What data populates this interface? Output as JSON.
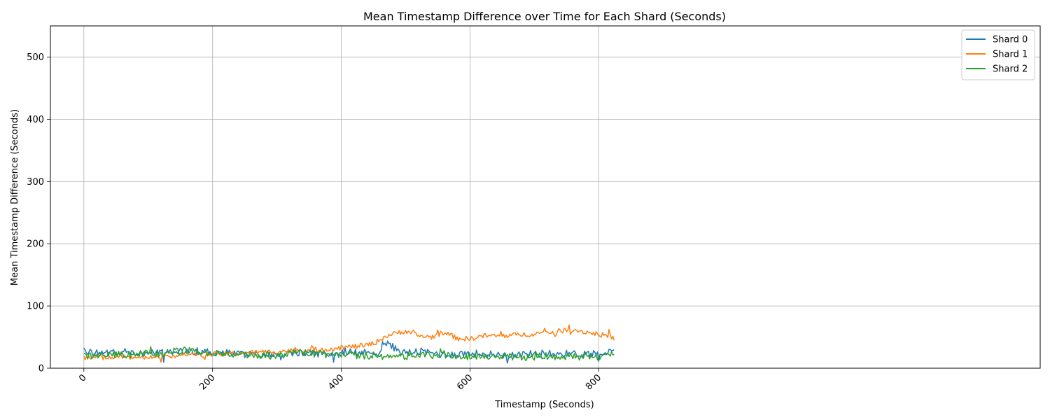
{
  "chart_data": {
    "type": "line",
    "title": "Mean Timestamp Difference over Time for Each Shard (Seconds)",
    "xlabel": "Timestamp (Seconds)",
    "ylabel": "Mean Timestamp Difference (Seconds)",
    "xlim": [
      -52,
      1486
    ],
    "ylim": [
      0,
      550
    ],
    "xticks": [
      0,
      200,
      400,
      600,
      800
    ],
    "yticks": [
      0,
      100,
      200,
      300,
      400,
      500
    ],
    "xtick_rotation": 45,
    "grid": true,
    "legend": {
      "position": "top-right"
    },
    "x_start": 0,
    "x_end": 825,
    "series": [
      {
        "name": "Shard 0",
        "color": "#1f77b4",
        "anchors": [
          [
            0,
            28
          ],
          [
            20,
            24
          ],
          [
            60,
            27
          ],
          [
            100,
            24
          ],
          [
            160,
            28
          ],
          [
            200,
            26
          ],
          [
            260,
            22
          ],
          [
            300,
            21
          ],
          [
            340,
            25
          ],
          [
            380,
            23
          ],
          [
            420,
            24
          ],
          [
            460,
            26
          ],
          [
            465,
            42
          ],
          [
            480,
            34
          ],
          [
            500,
            24
          ],
          [
            520,
            27
          ],
          [
            560,
            22
          ],
          [
            600,
            24
          ],
          [
            640,
            22
          ],
          [
            680,
            22
          ],
          [
            720,
            24
          ],
          [
            760,
            23
          ],
          [
            800,
            24
          ],
          [
            825,
            27
          ]
        ]
      },
      {
        "name": "Shard 1",
        "color": "#ff7f0e",
        "anchors": [
          [
            0,
            16
          ],
          [
            40,
            18
          ],
          [
            100,
            18
          ],
          [
            160,
            21
          ],
          [
            200,
            22
          ],
          [
            260,
            25
          ],
          [
            300,
            27
          ],
          [
            340,
            29
          ],
          [
            380,
            31
          ],
          [
            400,
            33
          ],
          [
            420,
            35
          ],
          [
            440,
            37
          ],
          [
            455,
            42
          ],
          [
            470,
            52
          ],
          [
            500,
            60
          ],
          [
            520,
            52
          ],
          [
            540,
            50
          ],
          [
            560,
            58
          ],
          [
            580,
            48
          ],
          [
            600,
            47
          ],
          [
            620,
            52
          ],
          [
            650,
            52
          ],
          [
            680,
            54
          ],
          [
            720,
            57
          ],
          [
            740,
            60
          ],
          [
            760,
            62
          ],
          [
            780,
            58
          ],
          [
            800,
            55
          ],
          [
            825,
            48
          ]
        ]
      },
      {
        "name": "Shard 2",
        "color": "#2ca02c",
        "anchors": [
          [
            0,
            18
          ],
          [
            60,
            22
          ],
          [
            120,
            24
          ],
          [
            170,
            30
          ],
          [
            200,
            23
          ],
          [
            260,
            21
          ],
          [
            300,
            21
          ],
          [
            340,
            26
          ],
          [
            380,
            21
          ],
          [
            420,
            20
          ],
          [
            460,
            20
          ],
          [
            480,
            19
          ],
          [
            520,
            20
          ],
          [
            560,
            22
          ],
          [
            600,
            19
          ],
          [
            640,
            18
          ],
          [
            680,
            18
          ],
          [
            720,
            19
          ],
          [
            760,
            19
          ],
          [
            800,
            19
          ],
          [
            825,
            22
          ]
        ]
      }
    ]
  }
}
